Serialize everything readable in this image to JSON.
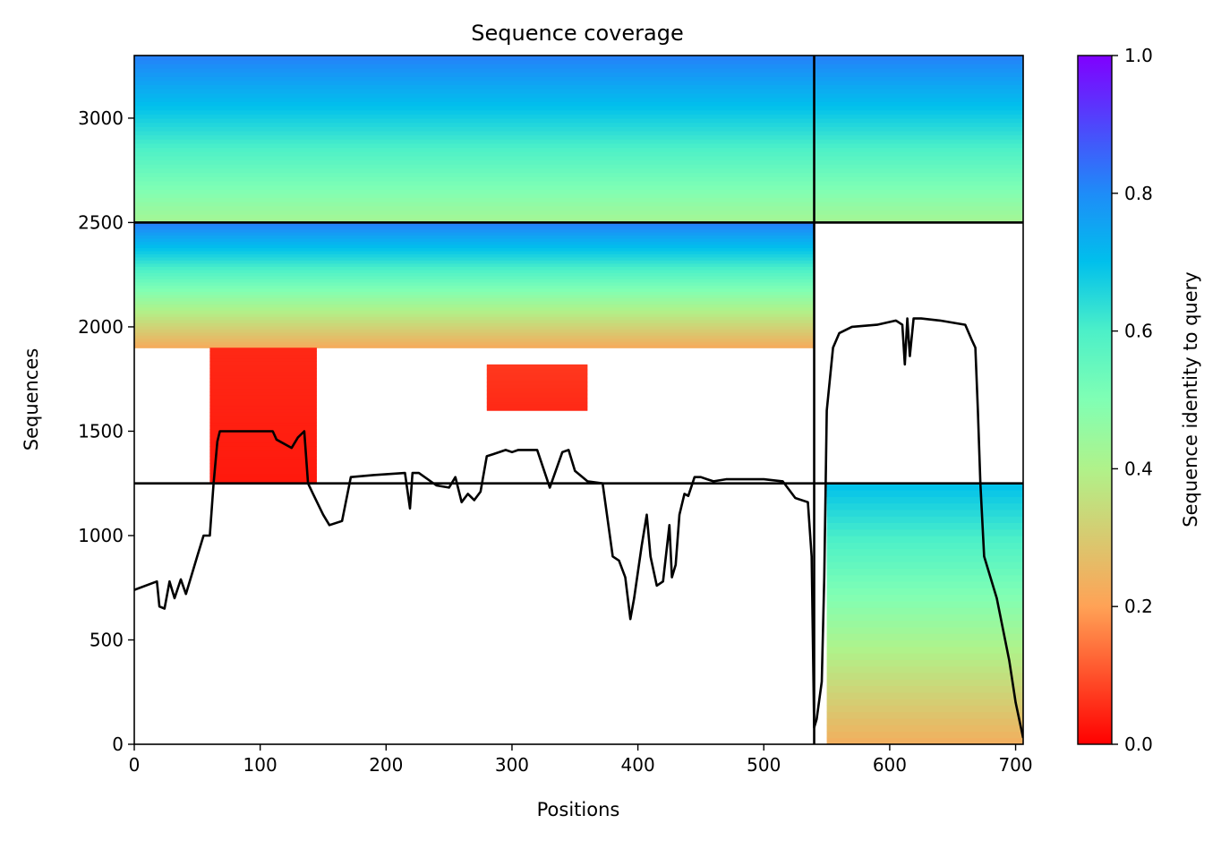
{
  "chart_data": {
    "type": "heatmap",
    "title": "Sequence coverage",
    "xlabel": "Positions",
    "ylabel": "Sequences",
    "xlim": [
      0,
      706
    ],
    "ylim": [
      0,
      3300
    ],
    "xticks": [
      0,
      100,
      200,
      300,
      400,
      500,
      600,
      700
    ],
    "yticks": [
      0,
      500,
      1000,
      1500,
      2000,
      2500,
      3000
    ],
    "colorbar": {
      "label": "Sequence identity to query",
      "range": [
        0,
        1
      ],
      "ticks": [
        "0.0",
        "0.2",
        "0.4",
        "0.6",
        "0.8",
        "1.0"
      ],
      "colormap": "rainbow_r"
    },
    "block_boundaries": {
      "x": [
        540
      ],
      "y": [
        1250,
        2500
      ]
    },
    "coverage_blocks": [
      {
        "x": [
          0,
          540
        ],
        "y": [
          2500,
          3300
        ],
        "identity_range": [
          0.42,
          0.82
        ]
      },
      {
        "x": [
          540,
          706
        ],
        "y": [
          2500,
          3300
        ],
        "identity_range": [
          0.42,
          0.82
        ]
      },
      {
        "x": [
          0,
          540
        ],
        "y": [
          1900,
          2500
        ],
        "identity_range": [
          0.22,
          0.82
        ]
      },
      {
        "x": [
          60,
          145
        ],
        "y": [
          1250,
          1900
        ],
        "identity_range": [
          0.03,
          0.05
        ]
      },
      {
        "x": [
          280,
          360
        ],
        "y": [
          1600,
          1820
        ],
        "identity_range": [
          0.05,
          0.07
        ]
      },
      {
        "x": [
          550,
          706
        ],
        "y": [
          0,
          1250
        ],
        "identity_range": [
          0.23,
          0.7
        ]
      }
    ],
    "coverage_line": {
      "x": [
        0,
        18,
        20,
        24,
        28,
        32,
        37,
        41,
        45,
        50,
        55,
        60,
        63,
        66,
        68,
        72,
        80,
        100,
        110,
        113,
        125,
        130,
        135,
        138,
        142,
        150,
        155,
        165,
        172,
        190,
        215,
        219,
        221,
        226,
        240,
        250,
        255,
        260,
        265,
        270,
        275,
        280,
        285,
        295,
        300,
        305,
        320,
        330,
        340,
        345,
        350,
        360,
        372,
        380,
        385,
        390,
        394,
        397,
        403,
        407,
        410,
        415,
        420,
        425,
        427,
        430,
        433,
        437,
        440,
        445,
        450,
        455,
        460,
        470,
        480,
        500,
        515,
        525,
        535,
        538,
        540,
        542,
        546,
        548,
        550,
        555,
        560,
        570,
        590,
        605,
        610,
        612,
        614,
        616,
        619,
        625,
        640,
        660,
        665,
        668,
        670,
        672,
        675,
        685,
        695,
        700,
        706
      ],
      "y": [
        740,
        780,
        660,
        650,
        780,
        700,
        790,
        720,
        800,
        900,
        1000,
        1000,
        1250,
        1450,
        1500,
        1500,
        1500,
        1500,
        1500,
        1460,
        1420,
        1470,
        1500,
        1250,
        1200,
        1100,
        1050,
        1070,
        1280,
        1290,
        1300,
        1130,
        1300,
        1300,
        1240,
        1230,
        1280,
        1160,
        1200,
        1170,
        1210,
        1380,
        1390,
        1410,
        1400,
        1410,
        1410,
        1230,
        1400,
        1410,
        1310,
        1260,
        1250,
        900,
        880,
        800,
        600,
        700,
        950,
        1100,
        900,
        760,
        780,
        1050,
        800,
        860,
        1100,
        1200,
        1190,
        1280,
        1280,
        1270,
        1260,
        1270,
        1270,
        1270,
        1260,
        1180,
        1160,
        900,
        80,
        120,
        300,
        800,
        1600,
        1900,
        1970,
        2000,
        2010,
        2030,
        2010,
        1820,
        2040,
        1860,
        2040,
        2040,
        2030,
        2010,
        1940,
        1900,
        1600,
        1250,
        900,
        700,
        400,
        200,
        30
      ]
    }
  }
}
